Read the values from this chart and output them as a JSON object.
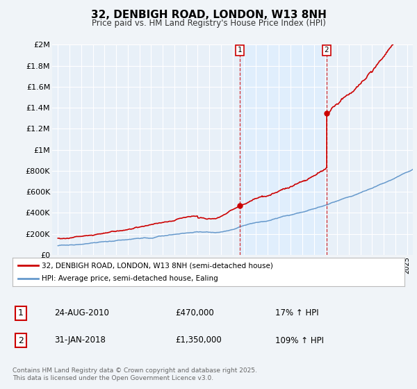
{
  "title": "32, DENBIGH ROAD, LONDON, W13 8NH",
  "subtitle": "Price paid vs. HM Land Registry's House Price Index (HPI)",
  "transaction1": {
    "date": "24-AUG-2010",
    "price": 470000,
    "hpi_pct": "17% ↑ HPI",
    "label": "1"
  },
  "transaction2": {
    "date": "31-JAN-2018",
    "price": 1350000,
    "hpi_pct": "109% ↑ HPI",
    "label": "2"
  },
  "dashed_line1_x": 2010.65,
  "dashed_line2_x": 2018.08,
  "legend_line1": "32, DENBIGH ROAD, LONDON, W13 8NH (semi-detached house)",
  "legend_line2": "HPI: Average price, semi-detached house, Ealing",
  "footer": "Contains HM Land Registry data © Crown copyright and database right 2025.\nThis data is licensed under the Open Government Licence v3.0.",
  "ylim": [
    0,
    2000000
  ],
  "yticks": [
    0,
    200000,
    400000,
    600000,
    800000,
    1000000,
    1200000,
    1400000,
    1600000,
    1800000,
    2000000
  ],
  "xlim": [
    1994.5,
    2025.5
  ],
  "red_line_color": "#cc0000",
  "blue_line_color": "#6699cc",
  "shade_color": "#ddeeff",
  "marker_color": "#cc0000",
  "plot_bg_color": "#e8f0f8",
  "fig_bg_color": "#f0f4f8"
}
